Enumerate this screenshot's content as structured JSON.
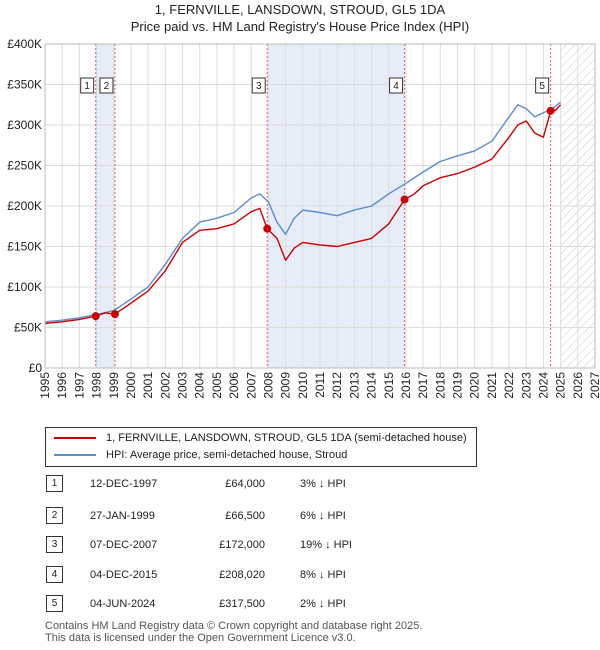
{
  "title_line1": "1, FERNVILLE, LANSDOWN, STROUD, GL5 1DA",
  "title_line2": "Price paid vs. HM Land Registry's House Price Index (HPI)",
  "chart_data": {
    "type": "line",
    "xlim": [
      1995,
      2027
    ],
    "ylim": [
      0,
      400000
    ],
    "yticks": [
      0,
      50000,
      100000,
      150000,
      200000,
      250000,
      300000,
      350000,
      400000
    ],
    "ytick_labels": [
      "£0",
      "£50K",
      "£100K",
      "£150K",
      "£200K",
      "£250K",
      "£300K",
      "£350K",
      "£400K"
    ],
    "xticks": [
      1995,
      1996,
      1997,
      1998,
      1999,
      2000,
      2001,
      2002,
      2003,
      2004,
      2005,
      2006,
      2007,
      2008,
      2009,
      2010,
      2011,
      2012,
      2013,
      2014,
      2015,
      2016,
      2017,
      2018,
      2019,
      2020,
      2021,
      2022,
      2023,
      2024,
      2025,
      2026,
      2027
    ],
    "shaded_periods": [
      [
        1997.95,
        1999.07
      ],
      [
        2007.93,
        2015.92
      ]
    ],
    "future_hatch_from": 2025.0,
    "series": [
      {
        "name": "1, FERNVILLE, LANSDOWN, STROUD, GL5 1DA (semi-detached house)",
        "color": "#cc0000",
        "x": [
          1995.0,
          1996.0,
          1997.0,
          1997.95,
          1998.5,
          1999.07,
          2000.0,
          2001.0,
          2002.0,
          2003.0,
          2004.0,
          2005.0,
          2006.0,
          2007.0,
          2007.5,
          2007.93,
          2008.5,
          2009.0,
          2009.5,
          2010.0,
          2011.0,
          2012.0,
          2013.0,
          2014.0,
          2015.0,
          2015.92,
          2016.5,
          2017.0,
          2018.0,
          2019.0,
          2020.0,
          2021.0,
          2022.0,
          2022.5,
          2023.0,
          2023.5,
          2024.0,
          2024.42,
          2024.7,
          2025.0
        ],
        "values": [
          55000,
          57000,
          60000,
          64000,
          68000,
          66500,
          80000,
          95000,
          120000,
          155000,
          170000,
          172000,
          178000,
          193000,
          197000,
          172000,
          160000,
          133000,
          148000,
          155000,
          152000,
          150000,
          155000,
          160000,
          178000,
          208020,
          215000,
          225000,
          235000,
          240000,
          248000,
          258000,
          285000,
          300000,
          305000,
          290000,
          285000,
          317500,
          318000,
          325000
        ]
      },
      {
        "name": "HPI: Average price, semi-detached house, Stroud",
        "color": "#5b8bd0",
        "x": [
          1995.0,
          1996.0,
          1997.0,
          1998.0,
          1999.0,
          2000.0,
          2001.0,
          2002.0,
          2003.0,
          2004.0,
          2005.0,
          2006.0,
          2007.0,
          2007.5,
          2008.0,
          2008.5,
          2009.0,
          2009.5,
          2010.0,
          2011.0,
          2012.0,
          2013.0,
          2014.0,
          2015.0,
          2016.0,
          2017.0,
          2018.0,
          2019.0,
          2020.0,
          2021.0,
          2022.0,
          2022.5,
          2023.0,
          2023.5,
          2024.0,
          2024.5,
          2025.0
        ],
        "values": [
          57000,
          59000,
          62000,
          66000,
          71000,
          85000,
          100000,
          128000,
          160000,
          180000,
          185000,
          192000,
          210000,
          215000,
          205000,
          180000,
          165000,
          185000,
          195000,
          192000,
          188000,
          195000,
          200000,
          215000,
          228000,
          242000,
          255000,
          262000,
          268000,
          280000,
          310000,
          325000,
          320000,
          310000,
          315000,
          320000,
          328000
        ]
      }
    ],
    "sales": [
      {
        "label": "1",
        "x": 1997.95,
        "value": 64000
      },
      {
        "label": "2",
        "x": 1999.07,
        "value": 66500
      },
      {
        "label": "3",
        "x": 2007.93,
        "value": 172000
      },
      {
        "label": "4",
        "x": 2015.92,
        "value": 208020
      },
      {
        "label": "5",
        "x": 2024.42,
        "value": 317500
      }
    ]
  },
  "legend": {
    "property": "1, FERNVILLE, LANSDOWN, STROUD, GL5 1DA (semi-detached house)",
    "hpi": "HPI: Average price, semi-detached house, Stroud",
    "property_color": "#cc0000",
    "hpi_color": "#5b8bd0"
  },
  "table": [
    {
      "num": "1",
      "date": "12-DEC-1997",
      "price": "£64,000",
      "hpi": "3% ↓ HPI"
    },
    {
      "num": "2",
      "date": "27-JAN-1999",
      "price": "£66,500",
      "hpi": "6% ↓ HPI"
    },
    {
      "num": "3",
      "date": "07-DEC-2007",
      "price": "£172,000",
      "hpi": "19% ↓ HPI"
    },
    {
      "num": "4",
      "date": "04-DEC-2015",
      "price": "£208,020",
      "hpi": "8% ↓ HPI"
    },
    {
      "num": "5",
      "date": "04-JUN-2024",
      "price": "£317,500",
      "hpi": "2% ↓ HPI"
    }
  ],
  "footer_line1": "Contains HM Land Registry data © Crown copyright and database right 2025.",
  "footer_line2": "This data is licensed under the Open Government Licence v3.0."
}
